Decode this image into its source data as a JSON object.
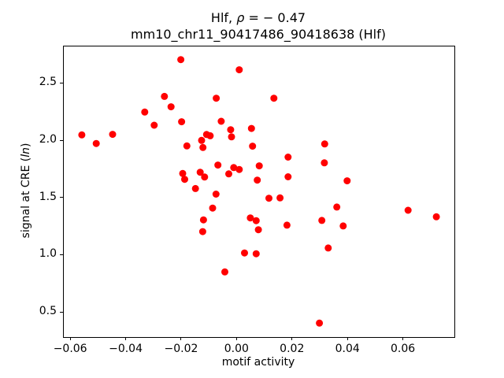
{
  "title": {
    "line1_prefix": "Hlf, ",
    "line1_rho": "ρ",
    "line1_rest": " = − 0.47",
    "line2": "mm10_chr11_90417486_90418638 (Hlf)"
  },
  "chart_data": {
    "type": "scatter",
    "title": "Hlf, ρ = − 0.47",
    "subtitle": "mm10_chr11_90417486_90418638 (Hlf)",
    "rho": -0.47,
    "xlabel": "motif activity",
    "ylabel": "signal at CRE (ln)",
    "ylabel_parts": {
      "prefix": "signal at CRE (",
      "italic": "ln",
      "suffix": ")"
    },
    "xlim": [
      -0.0626,
      0.0783
    ],
    "ylim": [
      0.287,
      2.826
    ],
    "x_ticks": [
      -0.06,
      -0.04,
      -0.02,
      0.0,
      0.02,
      0.04,
      0.06
    ],
    "x_tick_labels": [
      "−0.06",
      "−0.04",
      "−0.02",
      "0.00",
      "0.02",
      "0.04",
      "0.06"
    ],
    "y_ticks": [
      0.5,
      1.0,
      1.5,
      2.0,
      2.5
    ],
    "y_tick_labels": [
      "0.5",
      "1.0",
      "1.5",
      "2.0",
      "2.5"
    ],
    "grid": false,
    "legend": null,
    "marker_color": "#ff0000",
    "marker_radius_px": 4.5,
    "points": [
      [
        -0.0204,
        2.711
      ],
      [
        -0.0561,
        2.053
      ],
      [
        -0.0509,
        1.978
      ],
      [
        -0.045,
        2.058
      ],
      [
        -0.0334,
        2.253
      ],
      [
        -0.03,
        2.138
      ],
      [
        -0.0263,
        2.39
      ],
      [
        -0.0239,
        2.299
      ],
      [
        -0.0201,
        2.168
      ],
      [
        -0.0182,
        1.957
      ],
      [
        -0.0111,
        2.057
      ],
      [
        -0.0098,
        2.046
      ],
      [
        -0.0129,
        2.005
      ],
      [
        -0.0124,
        1.943
      ],
      [
        0.0007,
        2.622
      ],
      [
        -0.0076,
        2.374
      ],
      [
        0.0132,
        2.374
      ],
      [
        -0.0058,
        2.172
      ],
      [
        -0.0024,
        2.099
      ],
      [
        -0.0021,
        2.036
      ],
      [
        0.0051,
        2.11
      ],
      [
        0.0055,
        1.955
      ],
      [
        0.0315,
        1.974
      ],
      [
        0.0183,
        1.859
      ],
      [
        0.0314,
        1.809
      ],
      [
        -0.007,
        1.79
      ],
      [
        -0.0013,
        1.768
      ],
      [
        0.0007,
        1.751
      ],
      [
        0.0079,
        1.783
      ],
      [
        -0.0031,
        1.713
      ],
      [
        0.0183,
        1.687
      ],
      [
        0.0072,
        1.658
      ],
      [
        -0.0197,
        1.716
      ],
      [
        -0.019,
        1.665
      ],
      [
        -0.0134,
        1.727
      ],
      [
        -0.0118,
        1.685
      ],
      [
        0.0396,
        1.652
      ],
      [
        -0.0151,
        1.585
      ],
      [
        -0.0077,
        1.536
      ],
      [
        0.0114,
        1.5
      ],
      [
        0.0154,
        1.503
      ],
      [
        -0.0089,
        1.414
      ],
      [
        -0.0122,
        1.311
      ],
      [
        -0.0125,
        1.208
      ],
      [
        0.0047,
        1.328
      ],
      [
        0.0068,
        1.304
      ],
      [
        0.0076,
        1.225
      ],
      [
        0.0179,
        1.265
      ],
      [
        0.0305,
        1.306
      ],
      [
        0.0359,
        1.423
      ],
      [
        0.0382,
        1.258
      ],
      [
        0.0328,
        1.065
      ],
      [
        0.0026,
        1.022
      ],
      [
        0.0068,
        1.015
      ],
      [
        -0.0045,
        0.856
      ],
      [
        0.0296,
        0.409
      ],
      [
        0.0616,
        1.395
      ],
      [
        0.0718,
        1.338
      ]
    ]
  }
}
